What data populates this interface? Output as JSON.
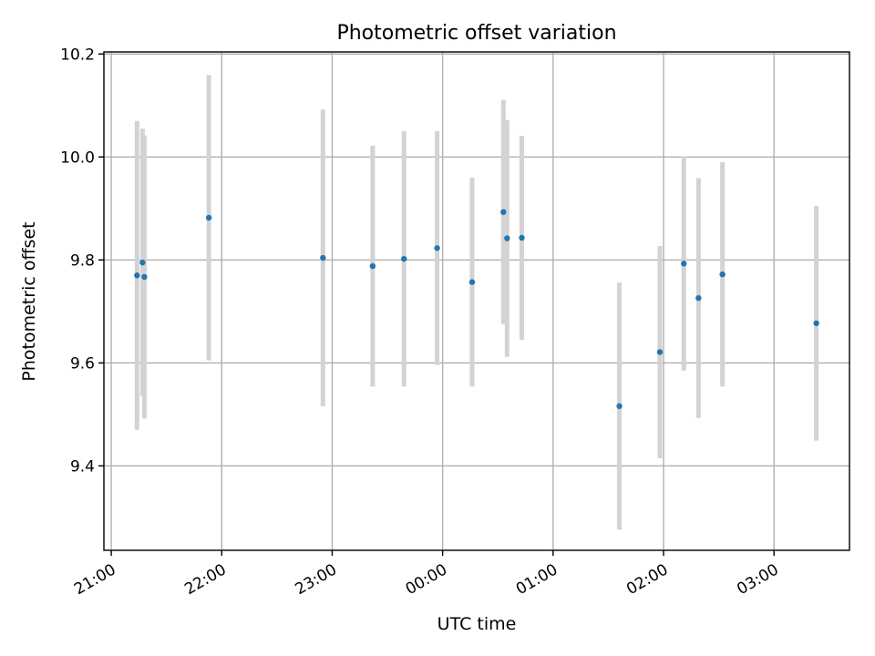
{
  "chart_data": {
    "type": "scatter",
    "title": "Photometric offset variation",
    "xlabel": "UTC time",
    "ylabel": "Photometric offset",
    "x_axis_type": "time",
    "x_ticks": [
      "21:00",
      "22:00",
      "23:00",
      "00:00",
      "01:00",
      "02:00",
      "03:00"
    ],
    "y_ticks": [
      "9.4",
      "9.6",
      "9.8",
      "10.0",
      "10.2"
    ],
    "grid": true,
    "colors": {
      "point": "#1f77b4",
      "errorbar": "#d3d3d3",
      "grid": "#b0b0b0"
    },
    "series": [
      {
        "points": [
          {
            "x": "21:14",
            "y": 9.77,
            "err": 0.3
          },
          {
            "x": "21:17",
            "y": 9.795,
            "err": 0.26
          },
          {
            "x": "21:18",
            "y": 9.767,
            "err": 0.275
          },
          {
            "x": "21:53",
            "y": 9.882,
            "err": 0.277
          },
          {
            "x": "22:55",
            "y": 9.804,
            "err": 0.288
          },
          {
            "x": "23:22",
            "y": 9.788,
            "err": 0.234
          },
          {
            "x": "23:39",
            "y": 9.802,
            "err": 0.248
          },
          {
            "x": "23:57",
            "y": 9.823,
            "err": 0.227
          },
          {
            "x": "00:16",
            "y": 9.757,
            "err": 0.203
          },
          {
            "x": "00:33",
            "y": 9.893,
            "err": 0.218
          },
          {
            "x": "00:35",
            "y": 9.842,
            "err": 0.23
          },
          {
            "x": "00:43",
            "y": 9.843,
            "err": 0.198
          },
          {
            "x": "01:36",
            "y": 9.516,
            "err": 0.24
          },
          {
            "x": "01:58",
            "y": 9.621,
            "err": 0.206
          },
          {
            "x": "02:11",
            "y": 9.793,
            "err": 0.208
          },
          {
            "x": "02:19",
            "y": 9.726,
            "err": 0.233
          },
          {
            "x": "02:32",
            "y": 9.772,
            "err": 0.218
          },
          {
            "x": "03:23",
            "y": 9.677,
            "err": 0.228
          }
        ]
      }
    ]
  }
}
